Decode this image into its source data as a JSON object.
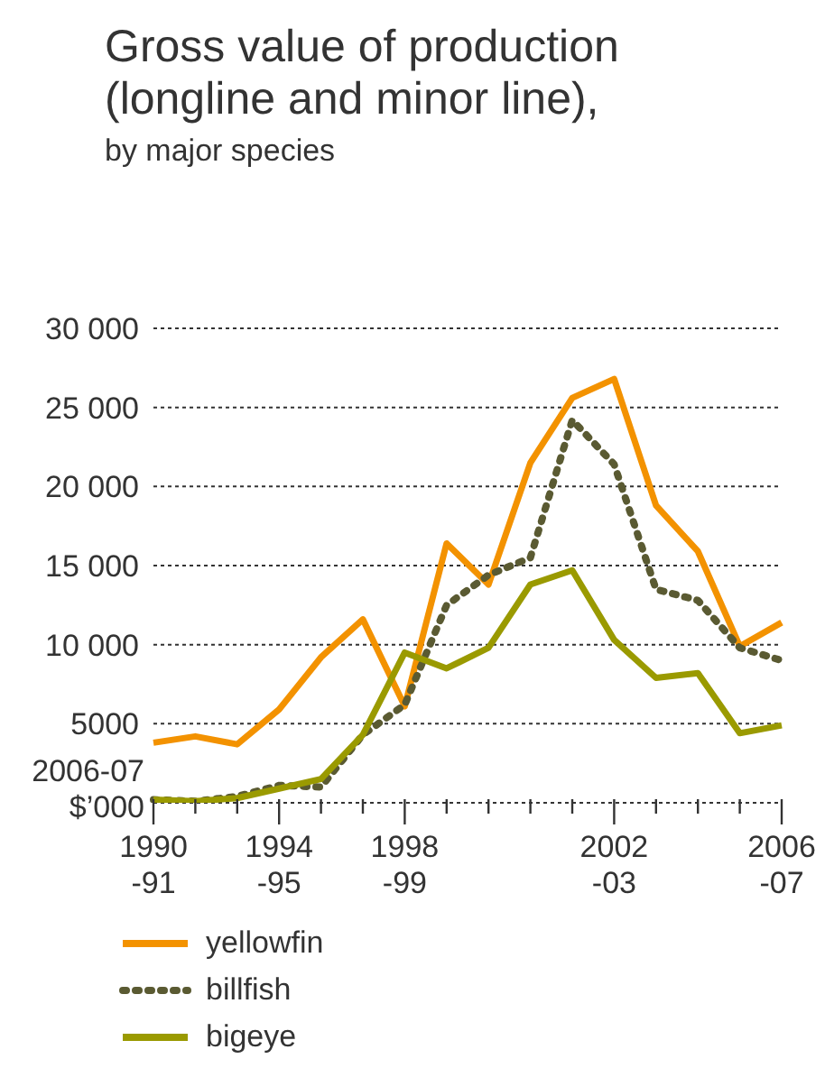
{
  "chart_data": {
    "type": "line",
    "title": "Gross value of production (longline and minor line),",
    "subtitle": "by major species",
    "ylabel": "2006-07 $’000",
    "categories": [
      "1990\n-91",
      null,
      null,
      "1994\n-95",
      null,
      null,
      "1998\n-99",
      null,
      null,
      null,
      null,
      "2002\n-03",
      null,
      null,
      null,
      "2006\n-07"
    ],
    "series": [
      {
        "name": "yellowfin",
        "color": "#f39200",
        "line_style": "solid",
        "values": [
          3800,
          4200,
          3700,
          5900,
          9200,
          11600,
          6100,
          16400,
          13800,
          21500,
          25600,
          26800,
          18800,
          15900,
          9900,
          11400
        ]
      },
      {
        "name": "billfish",
        "color": "#5a5a32",
        "line_style": "dotted",
        "values": [
          200,
          100,
          400,
          1100,
          1000,
          4300,
          6200,
          12500,
          14400,
          15500,
          24200,
          21400,
          13500,
          12800,
          9800,
          9000
        ]
      },
      {
        "name": "bigeye",
        "color": "#9a9a00",
        "line_style": "solid",
        "values": [
          200,
          100,
          300,
          900,
          1500,
          4300,
          9500,
          8500,
          9800,
          13800,
          14700,
          10300,
          7900,
          8200,
          4400,
          4900
        ]
      }
    ],
    "ylim": [
      0,
      30000
    ],
    "yticks": [
      {
        "value": 0,
        "label": null
      },
      5000,
      {
        "value": 10000,
        "label": "10 000"
      },
      {
        "value": 15000,
        "label": "15 000"
      },
      {
        "value": 20000,
        "label": "20 000"
      },
      {
        "value": 25000,
        "label": "25 000"
      },
      {
        "value": 30000,
        "label": "30 000"
      }
    ],
    "grid": "y",
    "legend": "bottom left",
    "marker": "none"
  }
}
